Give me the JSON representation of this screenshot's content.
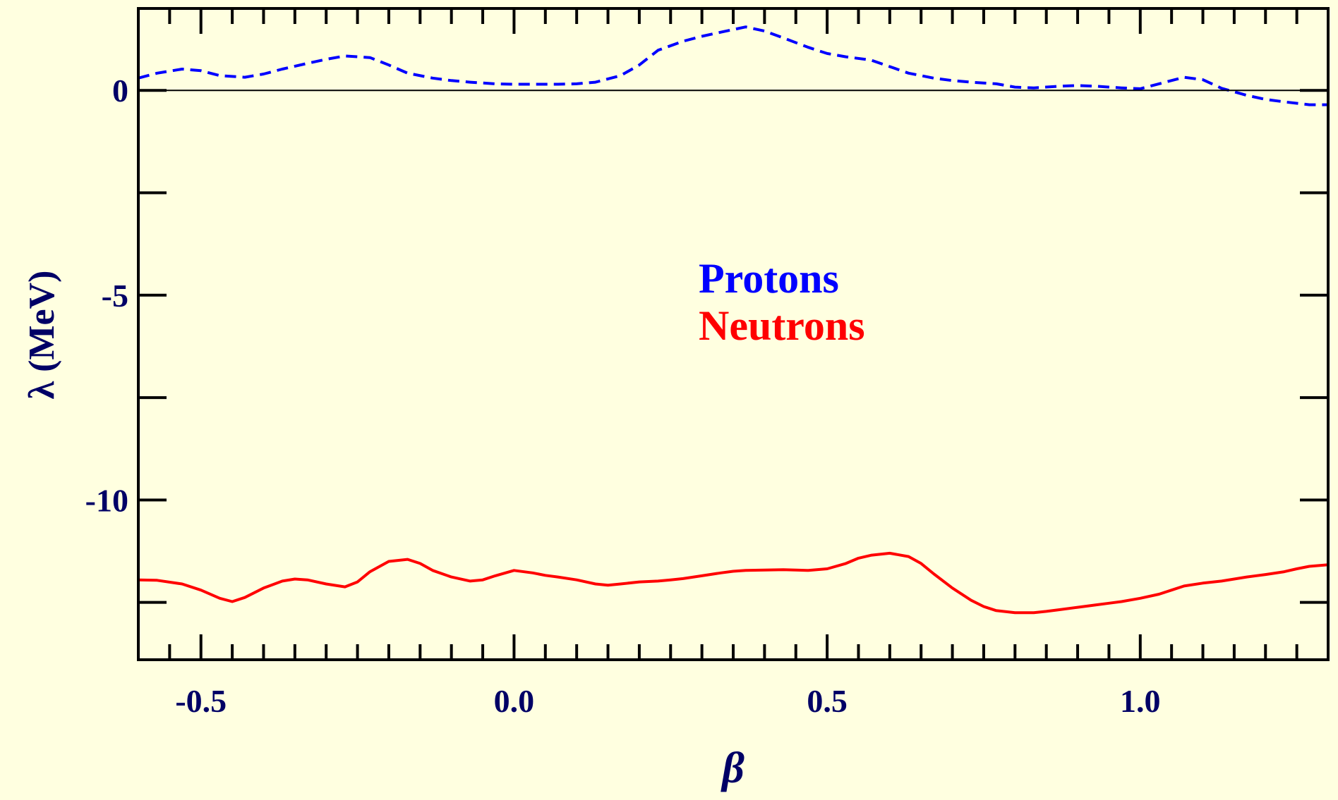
{
  "colors": {
    "background": "#ffffe0",
    "axis_text": "#000066",
    "frame": "#000000",
    "protons": "#0000ff",
    "neutrons": "#ff0000",
    "zero_line": "#000000"
  },
  "chart_data": {
    "type": "line",
    "title": "",
    "xlabel": "β",
    "ylabel": "λ (MeV)",
    "xlim": [
      -0.6,
      1.3
    ],
    "ylim": [
      -13.9,
      2.0
    ],
    "grid": false,
    "legend_placement": "center",
    "x_ticks": [
      {
        "value": -0.5,
        "label": "-0.5"
      },
      {
        "value": 0.0,
        "label": "0.0"
      },
      {
        "value": 0.5,
        "label": "0.5"
      },
      {
        "value": 1.0,
        "label": "1.0"
      }
    ],
    "y_ticks": [
      {
        "value": 0,
        "label": "0"
      },
      {
        "value": -5,
        "label": "-5"
      },
      {
        "value": -10,
        "label": "-10"
      }
    ],
    "x_minor_ticks": [
      -0.6,
      -0.55,
      -0.5,
      -0.45,
      -0.4,
      -0.35,
      -0.3,
      -0.25,
      -0.2,
      -0.15,
      -0.1,
      -0.05,
      0.0,
      0.05,
      0.1,
      0.15,
      0.2,
      0.25,
      0.3,
      0.35,
      0.4,
      0.45,
      0.5,
      0.55,
      0.6,
      0.65,
      0.7,
      0.75,
      0.8,
      0.85,
      0.9,
      0.95,
      1.0,
      1.05,
      1.1,
      1.15,
      1.2,
      1.25,
      1.3
    ],
    "y_minor_ticks": [
      0,
      -2.5,
      -5,
      -7.5,
      -10,
      -12.5
    ],
    "zero_line": 0,
    "series": [
      {
        "name": "Protons",
        "style": "dashed",
        "x": [
          -0.6,
          -0.57,
          -0.53,
          -0.5,
          -0.47,
          -0.43,
          -0.4,
          -0.37,
          -0.33,
          -0.3,
          -0.27,
          -0.23,
          -0.2,
          -0.17,
          -0.13,
          -0.1,
          -0.07,
          -0.03,
          0.0,
          0.03,
          0.07,
          0.1,
          0.13,
          0.17,
          0.2,
          0.23,
          0.27,
          0.3,
          0.33,
          0.37,
          0.4,
          0.43,
          0.47,
          0.5,
          0.53,
          0.57,
          0.6,
          0.63,
          0.67,
          0.7,
          0.73,
          0.77,
          0.8,
          0.83,
          0.87,
          0.9,
          0.93,
          0.97,
          1.0,
          1.03,
          1.07,
          1.1,
          1.13,
          1.17,
          1.2,
          1.23,
          1.27,
          1.3
        ],
        "values": [
          0.3,
          0.42,
          0.52,
          0.48,
          0.36,
          0.32,
          0.4,
          0.52,
          0.66,
          0.76,
          0.84,
          0.8,
          0.62,
          0.42,
          0.3,
          0.24,
          0.2,
          0.16,
          0.15,
          0.15,
          0.15,
          0.16,
          0.2,
          0.36,
          0.62,
          0.98,
          1.2,
          1.32,
          1.42,
          1.55,
          1.45,
          1.28,
          1.05,
          0.9,
          0.82,
          0.74,
          0.58,
          0.42,
          0.3,
          0.24,
          0.2,
          0.16,
          0.08,
          0.06,
          0.1,
          0.12,
          0.1,
          0.06,
          0.04,
          0.16,
          0.32,
          0.26,
          0.05,
          -0.12,
          -0.22,
          -0.28,
          -0.35,
          -0.35
        ]
      },
      {
        "name": "Neutrons",
        "style": "solid",
        "x": [
          -0.6,
          -0.57,
          -0.53,
          -0.5,
          -0.47,
          -0.45,
          -0.43,
          -0.4,
          -0.37,
          -0.35,
          -0.33,
          -0.3,
          -0.27,
          -0.25,
          -0.23,
          -0.2,
          -0.17,
          -0.15,
          -0.13,
          -0.1,
          -0.07,
          -0.05,
          -0.03,
          0.0,
          0.03,
          0.05,
          0.07,
          0.1,
          0.13,
          0.15,
          0.17,
          0.2,
          0.23,
          0.25,
          0.27,
          0.3,
          0.33,
          0.35,
          0.37,
          0.4,
          0.43,
          0.45,
          0.47,
          0.5,
          0.53,
          0.55,
          0.57,
          0.6,
          0.63,
          0.65,
          0.67,
          0.7,
          0.73,
          0.75,
          0.77,
          0.8,
          0.83,
          0.85,
          0.87,
          0.9,
          0.93,
          0.95,
          0.97,
          1.0,
          1.03,
          1.05,
          1.07,
          1.1,
          1.13,
          1.15,
          1.17,
          1.2,
          1.23,
          1.25,
          1.27,
          1.3
        ],
        "values": [
          -11.95,
          -11.96,
          -12.05,
          -12.2,
          -12.4,
          -12.48,
          -12.38,
          -12.15,
          -11.98,
          -11.93,
          -11.95,
          -12.05,
          -12.12,
          -12.0,
          -11.75,
          -11.5,
          -11.45,
          -11.55,
          -11.72,
          -11.88,
          -11.98,
          -11.95,
          -11.85,
          -11.72,
          -11.78,
          -11.84,
          -11.88,
          -11.95,
          -12.05,
          -12.08,
          -12.05,
          -12.0,
          -11.98,
          -11.95,
          -11.92,
          -11.85,
          -11.78,
          -11.74,
          -11.72,
          -11.71,
          -11.7,
          -11.71,
          -11.72,
          -11.68,
          -11.55,
          -11.42,
          -11.35,
          -11.3,
          -11.38,
          -11.55,
          -11.8,
          -12.15,
          -12.45,
          -12.6,
          -12.7,
          -12.75,
          -12.75,
          -12.72,
          -12.68,
          -12.62,
          -12.56,
          -12.52,
          -12.48,
          -12.4,
          -12.3,
          -12.2,
          -12.1,
          -12.03,
          -11.98,
          -11.93,
          -11.88,
          -11.82,
          -11.75,
          -11.68,
          -11.62,
          -11.58
        ]
      }
    ],
    "annotations": [
      {
        "text": "Protons",
        "color": "#0000ff"
      },
      {
        "text": "Neutrons",
        "color": "#ff0000"
      }
    ]
  }
}
